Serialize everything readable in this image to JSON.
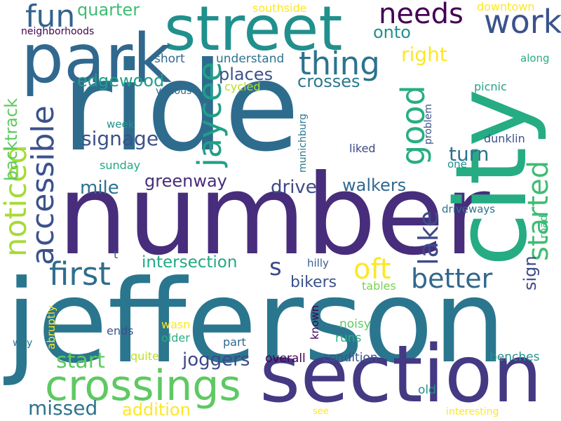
{
  "words": {
    "ride": {
      "text": "ride",
      "color": "#2e6c8e"
    },
    "number": {
      "text": "number",
      "color": "#472d7b"
    },
    "jefferson": {
      "text": "jefferson",
      "color": "#2a768e"
    },
    "city": {
      "text": "city",
      "color": "#25ac82"
    },
    "section": {
      "text": "section",
      "color": "#443983"
    },
    "street": {
      "text": "street",
      "color": "#21908d"
    },
    "park": {
      "text": "park",
      "color": "#31688e"
    },
    "crossings": {
      "text": "crossings",
      "color": "#5ec962"
    },
    "accessible": {
      "text": "accessible",
      "color": "#3b528b"
    },
    "noticed": {
      "text": "noticed",
      "color": "#a5db36"
    },
    "good": {
      "text": "good",
      "color": "#28ae80"
    },
    "jaycee": {
      "text": "jaycee",
      "color": "#1fa088"
    },
    "started": {
      "text": "started",
      "color": "#3fbc73"
    },
    "work": {
      "text": "work",
      "color": "#3b528b"
    },
    "needs": {
      "text": "needs",
      "color": "#440154"
    },
    "fun": {
      "text": "fun",
      "color": "#33638d"
    },
    "thing": {
      "text": "thing",
      "color": "#2c728e"
    },
    "first": {
      "text": "first",
      "color": "#2e6e8e"
    },
    "lake": {
      "text": "lake",
      "color": "#3e4a89"
    },
    "better": {
      "text": "better",
      "color": "#31688e"
    },
    "oft": {
      "text": "oft",
      "color": "#fde725"
    },
    "backtrack": {
      "text": "backtrack",
      "color": "#5ec962"
    },
    "s": {
      "text": "s",
      "color": "#3e4989"
    },
    "signage": {
      "text": "signage",
      "color": "#3b528b"
    },
    "edgewood": {
      "text": "edgewood",
      "color": "#1f9e89"
    },
    "quarter": {
      "text": "quarter",
      "color": "#3fbc73"
    },
    "onto": {
      "text": "onto",
      "color": "#21918c"
    },
    "right": {
      "text": "right",
      "color": "#fde725"
    },
    "places": {
      "text": "places",
      "color": "#3b528b"
    },
    "crosses": {
      "text": "crosses",
      "color": "#2a788e"
    },
    "turn": {
      "text": "turn",
      "color": "#2c728e"
    },
    "drive": {
      "text": "drive",
      "color": "#3e4a89"
    },
    "walkers": {
      "text": "walkers",
      "color": "#31688e"
    },
    "mile": {
      "text": "mile",
      "color": "#2d708e"
    },
    "greenway": {
      "text": "greenway",
      "color": "#472d7b"
    },
    "intersection": {
      "text": "intersection",
      "color": "#22a884"
    },
    "bikers": {
      "text": "bikers",
      "color": "#3b528b"
    },
    "start": {
      "text": "start",
      "color": "#5ec962"
    },
    "joggers": {
      "text": "joggers",
      "color": "#3e4989"
    },
    "missed": {
      "text": "missed",
      "color": "#2c728e"
    },
    "addition": {
      "text": "addition",
      "color": "#fde725"
    },
    "sign": {
      "text": "sign",
      "color": "#3e4a89"
    },
    "southside": {
      "text": "southside",
      "color": "#fde725"
    },
    "downtown": {
      "text": "downtown",
      "color": "#fde725"
    },
    "neighborhoods": {
      "text": "neighborhoods",
      "color": "#440154"
    },
    "along": {
      "text": "along",
      "color": "#28ae80"
    },
    "short": {
      "text": "short",
      "color": "#31688e"
    },
    "understand": {
      "text": "understand",
      "color": "#2c728e"
    },
    "various": {
      "text": "various",
      "color": "#31688e"
    },
    "cycled": {
      "text": "cycled",
      "color": "#b5de2b"
    },
    "picnic": {
      "text": "picnic",
      "color": "#21a585"
    },
    "munichburg": {
      "text": "munichburg",
      "color": "#2a788e"
    },
    "problem": {
      "text": "problem",
      "color": "#3b528b"
    },
    "dunklin": {
      "text": "dunklin",
      "color": "#3b528b"
    },
    "week": {
      "text": "week",
      "color": "#21918c"
    },
    "liked": {
      "text": "liked",
      "color": "#3e4989"
    },
    "sunday": {
      "text": "sunday",
      "color": "#22a884"
    },
    "one": {
      "text": "one",
      "color": "#21918c"
    },
    "driveways": {
      "text": "driveways",
      "color": "#2c728e"
    },
    "road": {
      "text": "road",
      "color": "#35b779"
    },
    "t": {
      "text": "t",
      "color": "#3b528b"
    },
    "hilly": {
      "text": "hilly",
      "color": "#35608d"
    },
    "tables": {
      "text": "tables",
      "color": "#7ad151"
    },
    "abruptly": {
      "text": "abruptly",
      "color": "#fde725"
    },
    "wasn": {
      "text": "wasn",
      "color": "#fde725"
    },
    "ends": {
      "text": "ends",
      "color": "#3b528b"
    },
    "known": {
      "text": "known",
      "color": "#440154"
    },
    "noisy": {
      "text": "noisy",
      "color": "#5ec962"
    },
    "way": {
      "text": "way",
      "color": "#2c728e"
    },
    "older": {
      "text": "older",
      "color": "#28ae80"
    },
    "part": {
      "text": "part",
      "color": "#31688e"
    },
    "runs": {
      "text": "runs",
      "color": "#28ae80"
    },
    "quite": {
      "text": "quite",
      "color": "#bddf26"
    },
    "overall": {
      "text": "overall",
      "color": "#440154"
    },
    "condition": {
      "text": "condition",
      "color": "#3b528b"
    },
    "benches": {
      "text": "benches",
      "color": "#21918c"
    },
    "old": {
      "text": "old",
      "color": "#21918c"
    },
    "see": {
      "text": "see",
      "color": "#fde725"
    },
    "interesting": {
      "text": "interesting",
      "color": "#fde725"
    }
  }
}
